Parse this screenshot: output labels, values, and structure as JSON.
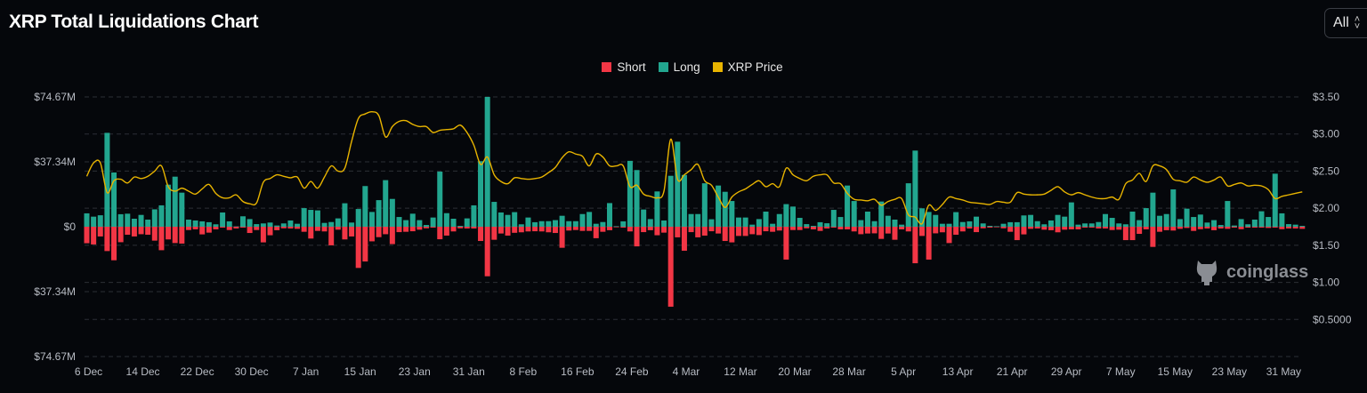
{
  "header": {
    "title": "XRP Total Liquidations Chart",
    "range_select": "All"
  },
  "watermark": "coinglass",
  "colors": {
    "short": "#f23645",
    "long": "#22a68f",
    "price": "#e8b400",
    "background": "#05070b",
    "grid": "#2c2f36"
  },
  "chart_data": {
    "type": "bar",
    "title": "XRP Total Liquidations Chart",
    "legend": [
      {
        "name": "Short",
        "color": "#f23645"
      },
      {
        "name": "Long",
        "color": "#22a68f"
      },
      {
        "name": "XRP Price",
        "color": "#e8b400"
      }
    ],
    "legend_position": "top",
    "x_tick_labels": [
      "6 Dec",
      "14 Dec",
      "22 Dec",
      "30 Dec",
      "7 Jan",
      "15 Jan",
      "23 Jan",
      "31 Jan",
      "8 Feb",
      "16 Feb",
      "24 Feb",
      "4 Mar",
      "12 Mar",
      "20 Mar",
      "28 Mar",
      "5 Apr",
      "13 Apr",
      "21 Apr",
      "29 Apr",
      "7 May",
      "15 May",
      "23 May",
      "31 May"
    ],
    "x_start": "6 Dec",
    "x_step_days": 1,
    "left_axis": {
      "ticks": [
        "$74.67M",
        "$37.34M",
        "$0",
        "$37.34M",
        "$74.67M"
      ],
      "range": [
        -74.67,
        74.67
      ],
      "unit": "M USD"
    },
    "right_axis": {
      "ticks": [
        "$3.50",
        "$3.00",
        "$2.50",
        "$2.00",
        "$1.50",
        "$1.00",
        "$0.5000"
      ],
      "range": [
        0,
        3.5
      ]
    },
    "grid": true,
    "series": [
      {
        "name": "Long",
        "axis": "left",
        "values": [
          7.7,
          5.8,
          6.6,
          54,
          31.2,
          7.2,
          7.5,
          4.6,
          6.8,
          4.1,
          10,
          12.3,
          24.2,
          28.8,
          19.6,
          4.1,
          3.6,
          3.1,
          2.6,
          1.4,
          8.2,
          3.1,
          0.2,
          6,
          4.4,
          1.5,
          1.9,
          2.4,
          0.7,
          1.9,
          3.6,
          1.7,
          10.7,
          9.7,
          9.4,
          2.2,
          2.7,
          4.8,
          13.5,
          2.4,
          10.2,
          23.4,
          8.5,
          15.3,
          26.8,
          16,
          5.6,
          3.8,
          7.5,
          3.8,
          1,
          5.3,
          31.7,
          7.8,
          4.6,
          0.5,
          4.8,
          12.3,
          37.7,
          74.67,
          14.3,
          8.2,
          6.8,
          8.4,
          1.4,
          5.3,
          2.6,
          3.2,
          3.2,
          3.8,
          6.3,
          3.2,
          3.2,
          7.3,
          8.5,
          1.7,
          2.7,
          13.6,
          0.3,
          3.1,
          37.9,
          32.6,
          9.9,
          4.4,
          20.3,
          3.6,
          29.3,
          48.9,
          29.8,
          7.3,
          7.3,
          25,
          4.3,
          23.7,
          20.1,
          14.8,
          5.3,
          5.3,
          1.2,
          4.4,
          8.7,
          1.7,
          7.3,
          13,
          11.6,
          5.1,
          1.5,
          0.5,
          2.6,
          2,
          9.7,
          5.6,
          23.7,
          14.8,
          3.8,
          8.7,
          3.2,
          14.5,
          6.3,
          4.1,
          1.2,
          25,
          43.8,
          10.6,
          8.5,
          6.8,
          1.7,
          1.7,
          8.4,
          2.7,
          3.1,
          5.8,
          1.9,
          0.5,
          0.3,
          1.7,
          2.6,
          2.6,
          6.5,
          6.8,
          3.2,
          1.4,
          3.6,
          6.8,
          5.8,
          14,
          1.2,
          1.9,
          1.9,
          2.7,
          7.3,
          5.1,
          1.9,
          1.4,
          8.7,
          3.8,
          10.7,
          19.6,
          6.3,
          7.3,
          21.5,
          4.4,
          10.4,
          5.6,
          7,
          2.4,
          3.8,
          1,
          14.8,
          0.7,
          4.4,
          1.4,
          4.1,
          8.9,
          5.6,
          30.5,
          7.7,
          1.5,
          1.2,
          0.5
        ]
      },
      {
        "name": "Short",
        "axis": "left",
        "direction": "down",
        "values": [
          9.5,
          10.2,
          5.6,
          14,
          19.3,
          8.9,
          4.6,
          5.6,
          4.3,
          4.6,
          8,
          13.5,
          7.3,
          9.4,
          9.7,
          1.9,
          1.5,
          4.4,
          3.4,
          1.5,
          0.5,
          1.9,
          1,
          0.5,
          3.6,
          1.9,
          9,
          4.9,
          2,
          0.9,
          1,
          1.2,
          2.9,
          6.8,
          2.4,
          2.7,
          10.7,
          1.7,
          7.3,
          5.6,
          23.7,
          20,
          8.4,
          6,
          4.3,
          10,
          3.1,
          2.9,
          2.6,
          1.7,
          0.9,
          0.5,
          7.2,
          5.1,
          2.7,
          0.9,
          1,
          1,
          8.2,
          28.5,
          7.5,
          3.9,
          5.1,
          3.5,
          3.2,
          2.7,
          2.6,
          2.7,
          3.2,
          3.6,
          12.1,
          2.2,
          1.9,
          2.4,
          2.4,
          6.6,
          2.9,
          2,
          0.3,
          0.5,
          2.7,
          11.3,
          3.1,
          2,
          4.9,
          3.4,
          46,
          6.1,
          13.8,
          3.1,
          6.1,
          5.1,
          2.6,
          3.9,
          8.2,
          9,
          5.3,
          5.3,
          4.3,
          4.8,
          2.6,
          2.9,
          2.2,
          18.9,
          1.9,
          1.9,
          0.9,
          1.5,
          2.4,
          1,
          0.5,
          1.5,
          1.5,
          2.7,
          4.3,
          3.9,
          3.8,
          7,
          3.9,
          7.5,
          1.5,
          2.7,
          21,
          5.3,
          18.9,
          3.8,
          3.2,
          9.4,
          4.6,
          2.7,
          1,
          3.1,
          0.9,
          0.5,
          0.3,
          0.9,
          2.9,
          7.7,
          4.4,
          1.2,
          1,
          1.7,
          2,
          3.2,
          1.7,
          1.5,
          1.5,
          0.5,
          0.5,
          1,
          1,
          1.9,
          1.7,
          7.7,
          7.7,
          4.1,
          1.5,
          11.6,
          2.9,
          2,
          2.2,
          1.2,
          0.7,
          2.4,
          1.4,
          1,
          2,
          1,
          1.2,
          0.5,
          1.4,
          0.5,
          0.5,
          0.5,
          0.7,
          0.5,
          1.4,
          1,
          1,
          1.2
        ]
      },
      {
        "name": "XRP Price",
        "type": "line",
        "axis": "right",
        "values": [
          2.43,
          2.61,
          2.61,
          2.21,
          2.37,
          2.39,
          2.34,
          2.42,
          2.4,
          2.43,
          2.5,
          2.57,
          2.29,
          2.23,
          2.27,
          2.23,
          2.19,
          2.26,
          2.32,
          2.2,
          2.14,
          2.14,
          2.18,
          2.09,
          2.06,
          2.07,
          2.35,
          2.4,
          2.45,
          2.43,
          2.41,
          2.42,
          2.27,
          2.36,
          2.27,
          2.42,
          2.57,
          2.5,
          2.54,
          2.9,
          3.21,
          3.27,
          3.3,
          3.25,
          2.96,
          3.1,
          3.17,
          3.18,
          3.13,
          3.1,
          3.1,
          3.02,
          3.05,
          3.06,
          3.07,
          3.12,
          3.02,
          2.85,
          2.59,
          2.69,
          2.45,
          2.36,
          2.33,
          2.41,
          2.4,
          2.39,
          2.4,
          2.42,
          2.48,
          2.55,
          2.68,
          2.76,
          2.73,
          2.7,
          2.57,
          2.73,
          2.69,
          2.57,
          2.57,
          2.57,
          2.29,
          2.31,
          2.19,
          2.16,
          2.14,
          2.23,
          2.93,
          2.39,
          2.45,
          2.52,
          2.59,
          2.37,
          2.31,
          2.15,
          2.01,
          2.15,
          2.22,
          2.26,
          2.32,
          2.37,
          2.29,
          2.33,
          2.29,
          2.54,
          2.45,
          2.4,
          2.37,
          2.43,
          2.45,
          2.45,
          2.34,
          2.33,
          2.2,
          2.12,
          2.11,
          2.1,
          2.12,
          2.04,
          2.09,
          2.12,
          2.13,
          1.91,
          1.88,
          1.79,
          2.04,
          1.97,
          2.05,
          2.15,
          2.13,
          2.11,
          2.08,
          2.07,
          2.06,
          2.05,
          2.09,
          2.08,
          2.08,
          2.21,
          2.19,
          2.18,
          2.18,
          2.19,
          2.24,
          2.29,
          2.22,
          2.18,
          2.21,
          2.18,
          2.15,
          2.13,
          2.13,
          2.15,
          2.12,
          2.33,
          2.38,
          2.47,
          2.36,
          2.57,
          2.57,
          2.52,
          2.39,
          2.37,
          2.35,
          2.42,
          2.38,
          2.35,
          2.38,
          2.42,
          2.3,
          2.32,
          2.34,
          2.3,
          2.31,
          2.3,
          2.25,
          2.13,
          2.16,
          2.18,
          2.2,
          2.22
        ]
      }
    ]
  }
}
